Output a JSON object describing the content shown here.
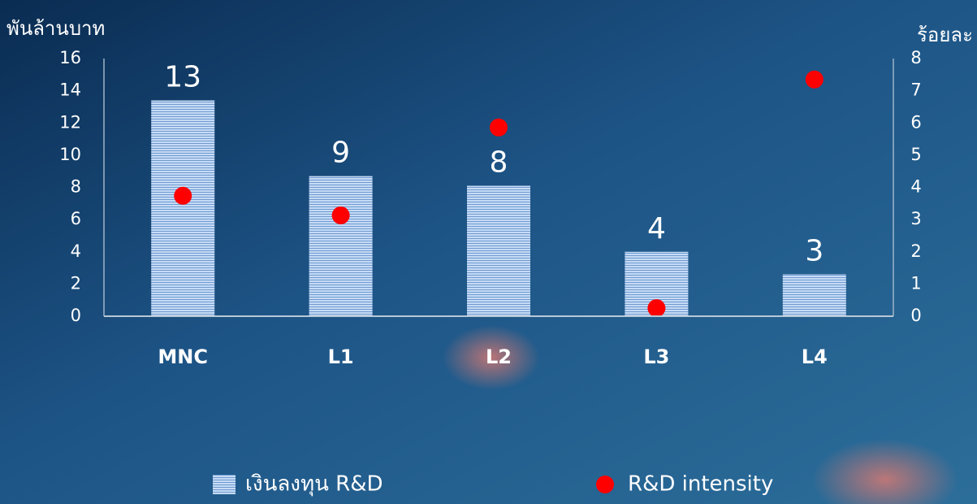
{
  "chart_data": {
    "type": "bar_scatter",
    "y_label": "พันล้านบาท",
    "y2_label": "ร้อยละ",
    "categories": [
      "MNC",
      "L1",
      "L2",
      "L3",
      "L4"
    ],
    "series": [
      {
        "name": "เงินลงทุน R&D",
        "type": "bar",
        "color": "#c6dbf5",
        "values": [
          13.4,
          8.7,
          8.1,
          4.0,
          2.6
        ],
        "value_labels": [
          "13",
          "9",
          "8",
          "4",
          "3"
        ]
      },
      {
        "name": "R&D intensity",
        "type": "scatter",
        "color": "#ff0000",
        "axis": "y2",
        "values": [
          3.74,
          3.13,
          5.86,
          0.25,
          7.35
        ]
      }
    ],
    "ylim": [
      0,
      16
    ],
    "yticks": [
      0,
      2,
      4,
      6,
      8,
      10,
      12,
      14,
      16
    ],
    "y2lim": [
      0,
      8
    ],
    "y2ticks": [
      0,
      1,
      2,
      3,
      4,
      5,
      6,
      7,
      8
    ],
    "legend": "bottom"
  }
}
